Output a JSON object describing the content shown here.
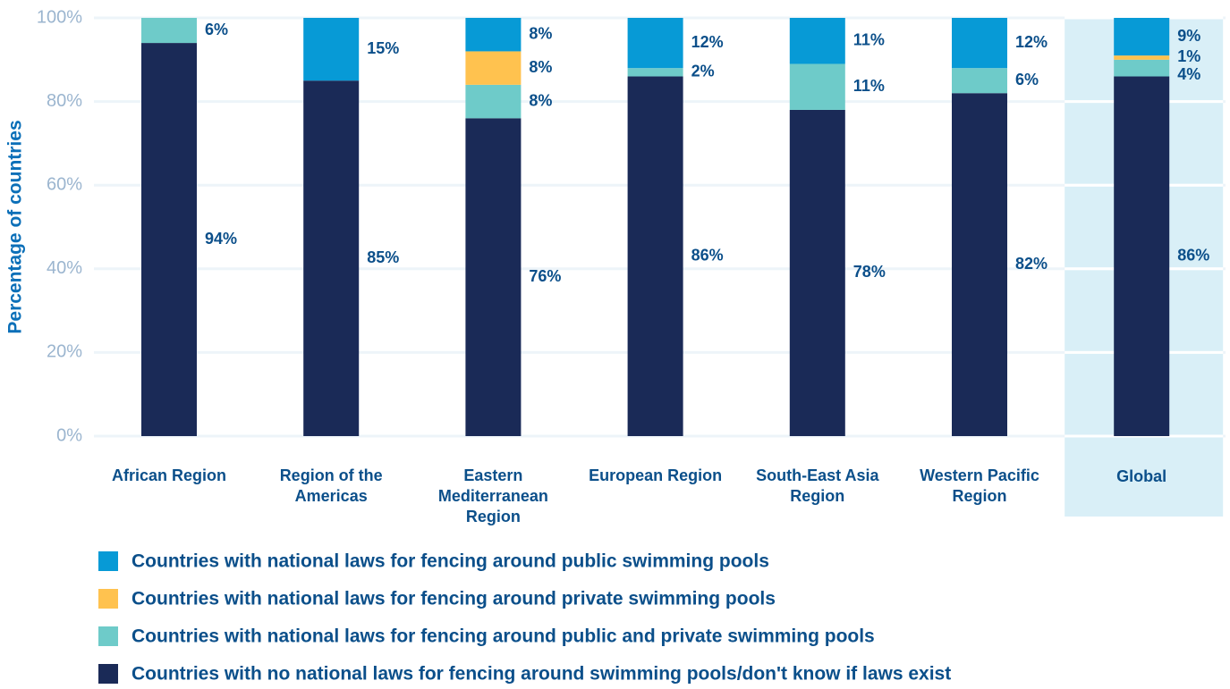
{
  "chart_data": {
    "type": "stacked_bar",
    "ylabel": "Percentage of countries",
    "categories": [
      "African Region",
      "Region of the Americas",
      "Eastern Mediterranean Region",
      "European Region",
      "South-East Asia Region",
      "Western Pacific Region",
      "Global"
    ],
    "series": [
      {
        "name": "Countries with no national laws for fencing around swimming pools/don't know if laws exist",
        "color": "#1a2a57",
        "values": [
          94,
          85,
          76,
          86,
          78,
          82,
          86
        ],
        "value_labels": [
          "94%",
          "85%",
          "76%",
          "86%",
          "78%",
          "82%",
          "86%"
        ]
      },
      {
        "name": "Countries with national laws for fencing around public and private swimming pools",
        "color": "#6ecbc9",
        "values": [
          6,
          null,
          8,
          2,
          11,
          6,
          4
        ],
        "value_labels": [
          "6%",
          null,
          "8%",
          "2%",
          "11%",
          "6%",
          "4%"
        ]
      },
      {
        "name": "Countries with national laws for fencing around private swimming pools",
        "color": "#ffc24f",
        "values": [
          null,
          null,
          8,
          null,
          null,
          null,
          1
        ],
        "value_labels": [
          null,
          null,
          "8%",
          null,
          null,
          null,
          "1%"
        ]
      },
      {
        "name": "Countries with national laws for fencing around public swimming pools",
        "color": "#079ad6",
        "values": [
          null,
          15,
          8,
          12,
          11,
          12,
          9
        ],
        "value_labels": [
          null,
          "15%",
          "8%",
          "12%",
          "11%",
          "12%",
          "9%"
        ]
      }
    ],
    "ylim": [
      0,
      100
    ],
    "yticks": [
      {
        "value": 0,
        "label": "0%"
      },
      {
        "value": 20,
        "label": "20%"
      },
      {
        "value": 40,
        "label": "40%"
      },
      {
        "value": 60,
        "label": "60%"
      },
      {
        "value": 80,
        "label": "80%"
      },
      {
        "value": 100,
        "label": "100%"
      }
    ],
    "grid": true
  }
}
